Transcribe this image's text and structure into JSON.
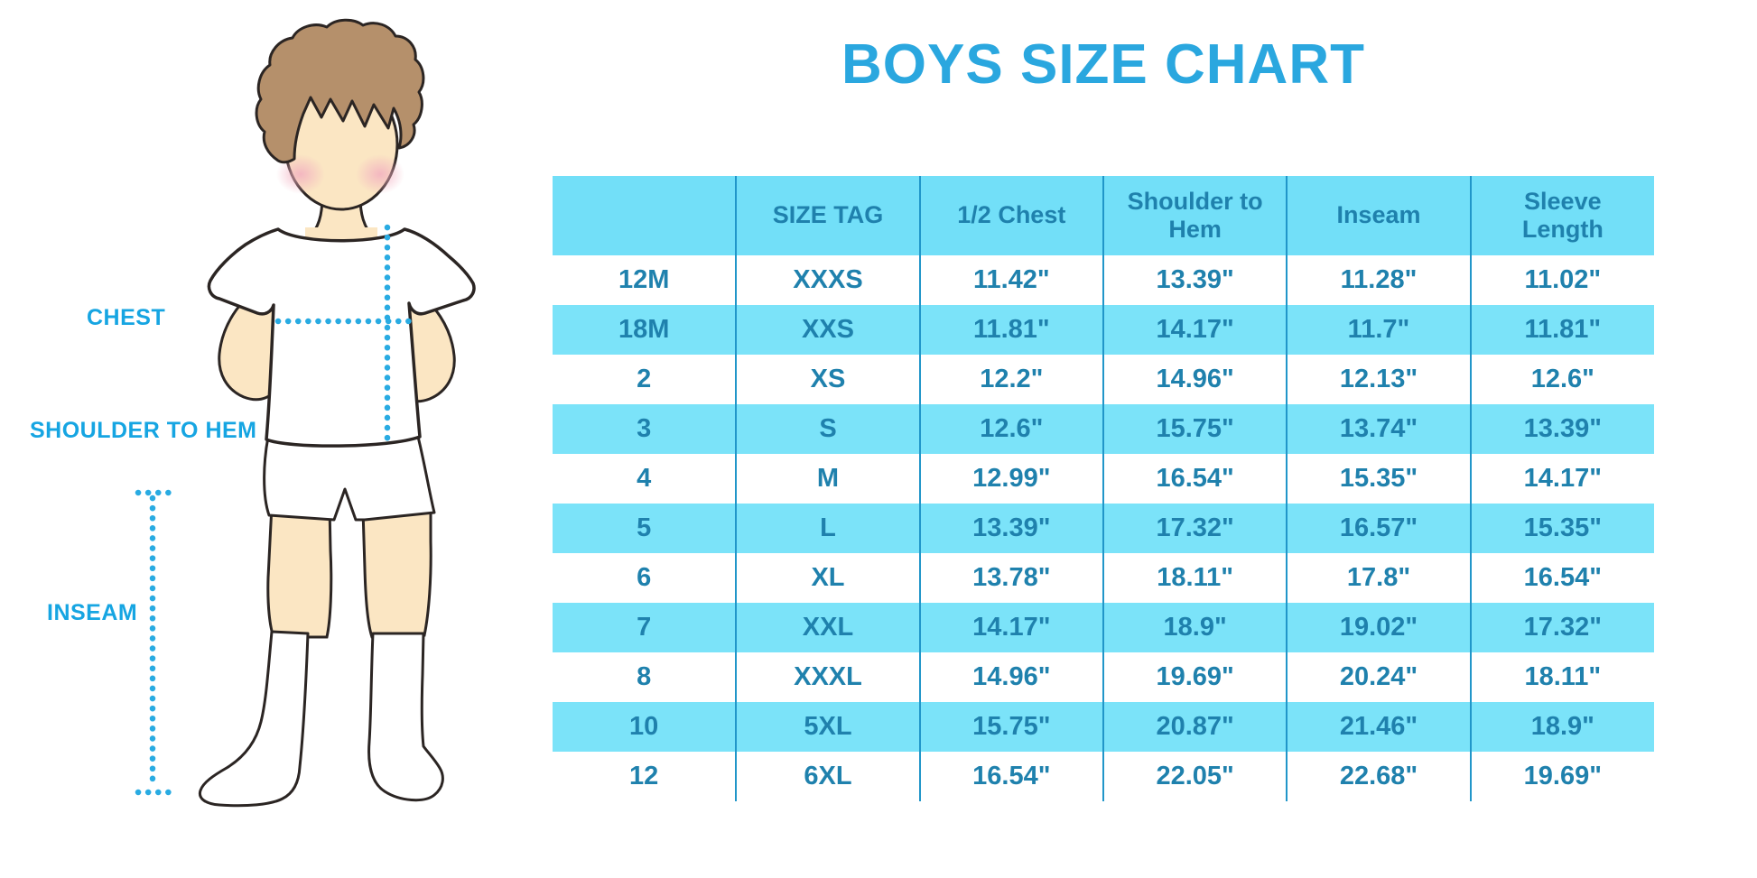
{
  "title": "BOYS SIZE CHART",
  "figure": {
    "labels": {
      "chest": "CHEST",
      "shoulder_to_hem": "SHOULDER TO HEM",
      "inseam": "INSEAM"
    }
  },
  "chart_data": {
    "type": "table",
    "title": "BOYS SIZE CHART",
    "unit": "inches",
    "columns": [
      "",
      "SIZE TAG",
      "1/2 Chest",
      "Shoulder to Hem",
      "Inseam",
      "Sleeve Length"
    ],
    "rows": [
      [
        "12M",
        "XXXS",
        "11.42\"",
        "13.39\"",
        "11.28\"",
        "11.02\""
      ],
      [
        "18M",
        "XXS",
        "11.81\"",
        "14.17\"",
        "11.7\"",
        "11.81\""
      ],
      [
        "2",
        "XS",
        "12.2\"",
        "14.96\"",
        "12.13\"",
        "12.6\""
      ],
      [
        "3",
        "S",
        "12.6\"",
        "15.75\"",
        "13.74\"",
        "13.39\""
      ],
      [
        "4",
        "M",
        "12.99\"",
        "16.54\"",
        "15.35\"",
        "14.17\""
      ],
      [
        "5",
        "L",
        "13.39\"",
        "17.32\"",
        "16.57\"",
        "15.35\""
      ],
      [
        "6",
        "XL",
        "13.78\"",
        "18.11\"",
        "17.8\"",
        "16.54\""
      ],
      [
        "7",
        "XXL",
        "14.17\"",
        "18.9\"",
        "19.02\"",
        "17.32\""
      ],
      [
        "8",
        "XXXL",
        "14.96\"",
        "19.69\"",
        "20.24\"",
        "18.11\""
      ],
      [
        "10",
        "5XL",
        "15.75\"",
        "20.87\"",
        "21.46\"",
        "18.9\""
      ],
      [
        "12",
        "6XL",
        "16.54\"",
        "22.05\"",
        "22.68\"",
        "19.69\""
      ]
    ]
  },
  "colors": {
    "title_blue": "#2AA7DF",
    "label_blue": "#16A5E2",
    "header_bg": "#72DFF8",
    "row_alt_bg": "#7BE3F9",
    "cell_text": "#1F81AD",
    "grid_line": "#2196C9",
    "dotted_line": "#29ABE2",
    "skin": "#FBE6C3",
    "hair": "#B5906B",
    "blush": "#F2AFC0",
    "outline": "#2B2523"
  }
}
